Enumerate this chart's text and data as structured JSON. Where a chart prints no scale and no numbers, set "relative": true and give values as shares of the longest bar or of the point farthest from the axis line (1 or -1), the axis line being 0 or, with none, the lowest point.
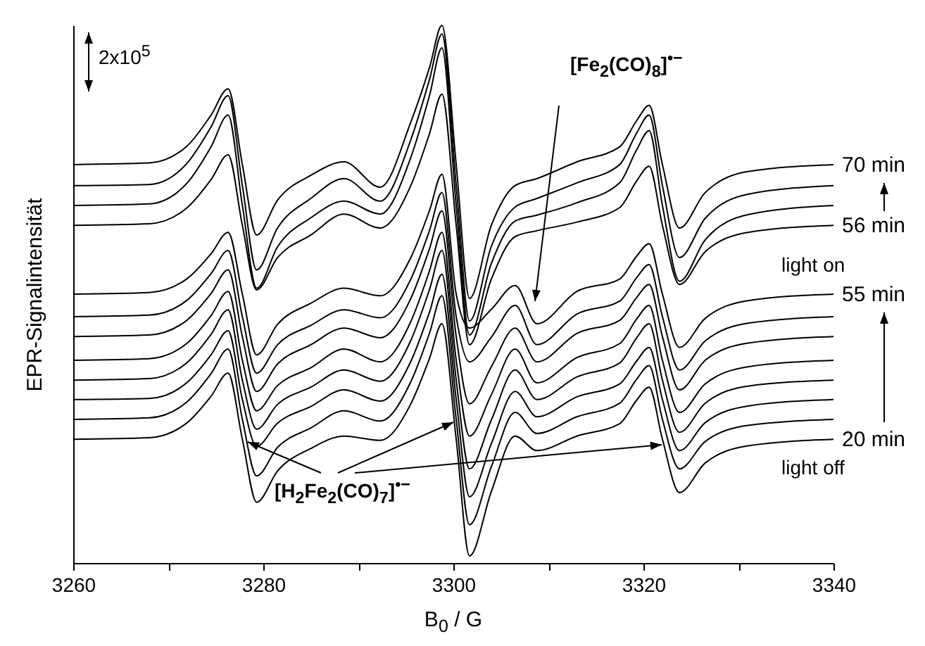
{
  "chart_data": {
    "type": "line",
    "relative": true,
    "xlabel": "B$_{0}$ / G",
    "ylabel": "EPR-Signalintensität",
    "annotations": [
      "2x10$^{5}$",
      "[Fe$_{2}$(CO)$_{8}$]$^{•−}$",
      "[H$_{2}$Fe$_{2}$(CO)$_{7}$]$^{•−}$",
      "light on",
      "light off"
    ],
    "xlim": [
      3260,
      3340
    ],
    "xticks": [
      3260,
      {
        "value": 3270,
        "label": null
      },
      3280,
      {
        "value": 3290,
        "label": null
      },
      3300,
      {
        "value": 3310,
        "label": null
      },
      3320,
      {
        "value": 3330,
        "label": null
      },
      3340
    ],
    "marker": "none",
    "line_style": "solid",
    "x": [
      3260,
      3268,
      3272,
      3274.5,
      3276.3,
      3277.8,
      3279.3,
      3281.5,
      3285,
      3288.5,
      3292.3,
      3295.5,
      3297.5,
      3298.8,
      3300.3,
      3301.7,
      3304,
      3306.5,
      3308.8,
      3313,
      3317.5,
      3319.3,
      3320.6,
      3322,
      3323.8,
      3326.5,
      3331,
      3340
    ],
    "series": [
      {
        "name": "70 min",
        "color": "#000000",
        "values": [
          0.741,
          0.744,
          0.776,
          0.833,
          0.882,
          0.741,
          0.61,
          0.675,
          0.721,
          0.746,
          0.699,
          0.819,
          0.922,
          1.0,
          0.741,
          0.492,
          0.628,
          0.702,
          0.715,
          0.746,
          0.774,
          0.823,
          0.851,
          0.741,
          0.623,
          0.689,
          0.728,
          0.741
        ]
      },
      {
        "color": "#000000",
        "values": [
          0.702,
          0.704,
          0.744,
          0.811,
          0.869,
          0.702,
          0.545,
          0.623,
          0.678,
          0.715,
          0.673,
          0.786,
          0.9,
          0.984,
          0.702,
          0.45,
          0.589,
          0.662,
          0.678,
          0.707,
          0.741,
          0.8,
          0.833,
          0.702,
          0.568,
          0.641,
          0.686,
          0.702
        ]
      },
      {
        "color": "#000000",
        "values": [
          0.665,
          0.668,
          0.707,
          0.774,
          0.833,
          0.665,
          0.511,
          0.588,
          0.642,
          0.673,
          0.649,
          0.753,
          0.87,
          0.958,
          0.665,
          0.424,
          0.557,
          0.636,
          0.647,
          0.67,
          0.707,
          0.769,
          0.804,
          0.665,
          0.524,
          0.601,
          0.648,
          0.665
        ]
      },
      {
        "name": "56 min",
        "color": "#000000",
        "values": [
          0.628,
          0.631,
          0.661,
          0.713,
          0.759,
          0.628,
          0.508,
          0.568,
          0.61,
          0.649,
          0.623,
          0.701,
          0.799,
          0.872,
          0.628,
          0.406,
          0.528,
          0.607,
          0.618,
          0.634,
          0.661,
          0.711,
          0.738,
          0.628,
          0.518,
          0.579,
          0.615,
          0.628
        ]
      },
      {
        "name": "55 min",
        "color": "#000000",
        "values": [
          0.5,
          0.503,
          0.529,
          0.575,
          0.615,
          0.5,
          0.387,
          0.444,
          0.483,
          0.511,
          0.497,
          0.567,
          0.656,
          0.723,
          0.5,
          0.437,
          0.472,
          0.516,
          0.445,
          0.505,
          0.528,
          0.571,
          0.594,
          0.5,
          0.401,
          0.455,
          0.488,
          0.5
        ]
      },
      {
        "color": "#000000",
        "values": [
          0.458,
          0.461,
          0.489,
          0.538,
          0.581,
          0.458,
          0.353,
          0.406,
          0.442,
          0.471,
          0.456,
          0.527,
          0.619,
          0.689,
          0.458,
          0.374,
          0.42,
          0.479,
          0.406,
          0.463,
          0.487,
          0.531,
          0.555,
          0.458,
          0.359,
          0.413,
          0.446,
          0.458
        ]
      },
      {
        "color": "#000000",
        "values": [
          0.421,
          0.424,
          0.452,
          0.501,
          0.545,
          0.421,
          0.319,
          0.37,
          0.406,
          0.437,
          0.419,
          0.491,
          0.585,
          0.655,
          0.421,
          0.296,
          0.365,
          0.437,
          0.374,
          0.427,
          0.451,
          0.494,
          0.518,
          0.421,
          0.322,
          0.377,
          0.409,
          0.421
        ]
      },
      {
        "color": "#000000",
        "values": [
          0.377,
          0.38,
          0.409,
          0.46,
          0.505,
          0.377,
          0.283,
          0.33,
          0.363,
          0.398,
          0.374,
          0.448,
          0.544,
          0.615,
          0.377,
          0.236,
          0.313,
          0.398,
          0.335,
          0.382,
          0.408,
          0.454,
          0.479,
          0.377,
          0.28,
          0.333,
          0.365,
          0.377
        ]
      },
      {
        "color": "#000000",
        "values": [
          0.34,
          0.343,
          0.373,
          0.425,
          0.471,
          0.34,
          0.249,
          0.295,
          0.327,
          0.359,
          0.338,
          0.413,
          0.509,
          0.581,
          0.34,
          0.175,
          0.266,
          0.359,
          0.304,
          0.346,
          0.372,
          0.419,
          0.445,
          0.34,
          0.243,
          0.297,
          0.329,
          0.34
        ]
      },
      {
        "color": "#000000",
        "values": [
          0.304,
          0.306,
          0.336,
          0.387,
          0.432,
          0.304,
          0.217,
          0.26,
          0.291,
          0.322,
          0.301,
          0.374,
          0.467,
          0.537,
          0.304,
          0.123,
          0.222,
          0.319,
          0.272,
          0.309,
          0.333,
          0.376,
          0.401,
          0.304,
          0.209,
          0.261,
          0.292,
          0.304
        ]
      },
      {
        "color": "#000000",
        "values": [
          0.267,
          0.27,
          0.3,
          0.352,
          0.398,
          0.267,
          0.162,
          0.215,
          0.251,
          0.283,
          0.264,
          0.336,
          0.428,
          0.497,
          0.267,
          0.071,
          0.179,
          0.28,
          0.241,
          0.272,
          0.297,
          0.342,
          0.367,
          0.267,
          0.175,
          0.226,
          0.256,
          0.267
        ]
      },
      {
        "name": "20 min",
        "color": "#000000",
        "values": [
          0.23,
          0.233,
          0.261,
          0.31,
          0.353,
          0.23,
          0.113,
          0.171,
          0.213,
          0.236,
          0.228,
          0.295,
          0.381,
          0.445,
          0.23,
          0.013,
          0.133,
          0.236,
          0.209,
          0.236,
          0.259,
          0.303,
          0.327,
          0.23,
          0.131,
          0.186,
          0.218,
          0.23
        ]
      }
    ]
  }
}
